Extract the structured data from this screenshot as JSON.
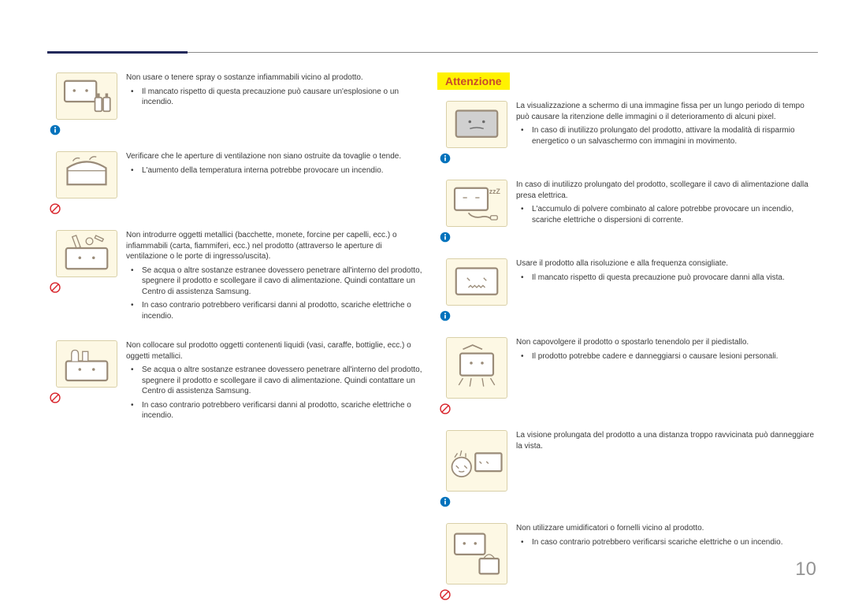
{
  "page_number": "10",
  "attention_label": "Attenzione",
  "colors": {
    "accent": "#22285a",
    "icon_bg": "#fdf8e4",
    "attention_bg": "#fff200",
    "attention_text": "#c84a2a",
    "prohibit": "#d8232a",
    "info": "#0072bc"
  },
  "left": [
    {
      "symbol": "info",
      "main": "Non usare o tenere spray o sostanze infiammabili vicino al prodotto.",
      "bullets": [
        "Il mancato rispetto di questa precauzione può causare un'esplosione o un incendio."
      ]
    },
    {
      "symbol": "prohibit",
      "main": "Verificare che le aperture di ventilazione non siano ostruite da tovaglie o tende.",
      "bullets": [
        "L'aumento della temperatura interna potrebbe provocare un incendio."
      ]
    },
    {
      "symbol": "prohibit",
      "main": "Non introdurre oggetti metallici (bacchette, monete, forcine per capelli, ecc.) o infiammabili (carta, fiammiferi, ecc.) nel prodotto (attraverso le aperture di ventilazione o le porte di ingresso/uscita).",
      "bullets": [
        "Se acqua o altre sostanze estranee dovessero penetrare all'interno del prodotto, spegnere il prodotto e scollegare il cavo di alimentazione. Quindi contattare un Centro di assistenza Samsung.",
        "In caso contrario potrebbero verificarsi danni al prodotto, scariche elettriche o incendio."
      ]
    },
    {
      "symbol": "prohibit",
      "main": "Non collocare sul prodotto oggetti contenenti liquidi (vasi, caraffe, bottiglie, ecc.) o oggetti metallici.",
      "bullets": [
        "Se acqua o altre sostanze estranee dovessero penetrare all'interno del prodotto, spegnere il prodotto e scollegare il cavo di alimentazione. Quindi contattare un Centro di assistenza Samsung.",
        "In caso contrario potrebbero verificarsi danni al prodotto, scariche elettriche o incendio."
      ]
    }
  ],
  "right": [
    {
      "symbol": "info",
      "main": "La visualizzazione a schermo di una immagine fissa per un lungo periodo di tempo può causare la ritenzione delle immagini o il deterioramento di alcuni pixel.",
      "bullets": [
        "In caso di inutilizzo prolungato del prodotto, attivare la modalità di risparmio energetico o un salvaschermo con immagini in movimento."
      ]
    },
    {
      "symbol": "info",
      "main": "In caso di inutilizzo prolungato del prodotto, scollegare il cavo di alimentazione dalla presa elettrica.",
      "bullets": [
        "L'accumulo di polvere combinato al calore potrebbe provocare un incendio, scariche elettriche o dispersioni di corrente."
      ]
    },
    {
      "symbol": "info",
      "main": "Usare il prodotto alla risoluzione e alla frequenza consigliate.",
      "bullets": [
        "Il mancato rispetto di questa precauzione può provocare danni alla vista."
      ]
    },
    {
      "symbol": "prohibit",
      "main": "Non capovolgere il prodotto o spostarlo tenendolo per il piedistallo.",
      "bullets": [
        "Il prodotto potrebbe cadere e danneggiarsi o causare lesioni personali."
      ]
    },
    {
      "symbol": "info",
      "main": "La visione prolungata del prodotto a una distanza troppo ravvicinata può danneggiare la vista.",
      "bullets": []
    },
    {
      "symbol": "prohibit",
      "main": "Non utilizzare umidificatori o fornelli vicino al prodotto.",
      "bullets": [
        "In caso contrario potrebbero verificarsi scariche elettriche o un incendio."
      ]
    }
  ]
}
